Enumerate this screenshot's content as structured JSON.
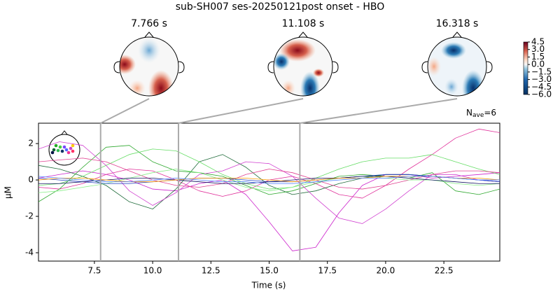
{
  "chart_data": {
    "type": "line",
    "title": "sub-SH007 ses-20250121post onset - HBO",
    "xlabel": "Time (s)",
    "ylabel": "µM",
    "annotation": {
      "main": "N",
      "sub": "ave",
      "rest": "=6"
    },
    "markers": [
      {
        "value": 7.766,
        "label": "7.766 s"
      },
      {
        "value": 11.108,
        "label": "11.108 s"
      },
      {
        "value": 16.318,
        "label": "16.318 s"
      }
    ],
    "clim": [
      -6,
      4.5
    ],
    "cticks": [
      4.5,
      {
        "value": 3,
        "label": "3.0"
      },
      1.5,
      {
        "value": 0,
        "label": "0.0"
      },
      {
        "value": -1.5,
        "label": "−1.5"
      },
      {
        "value": -3,
        "label": "−3.0"
      },
      {
        "value": -4.5,
        "label": "−4.5"
      },
      {
        "value": -6,
        "label": "−6.0"
      }
    ],
    "xlim": [
      5.1,
      24.9
    ],
    "ylim": [
      -4.46,
      3.12
    ],
    "xticks": [
      7.5,
      {
        "value": 10,
        "label": "10.0"
      },
      12.5,
      {
        "value": 15,
        "label": "15.0"
      },
      17.5,
      {
        "value": 20,
        "label": "20.0"
      },
      22.5
    ],
    "yticks": [
      -4,
      -2,
      0,
      2
    ],
    "x": [
      5.1,
      6,
      7,
      8,
      9,
      10,
      11,
      12,
      13,
      14,
      15,
      16,
      17,
      18,
      19,
      20,
      21,
      22,
      23,
      24,
      24.9
    ],
    "series": [
      {
        "color": "#cc22cc",
        "values": [
          0.1,
          0.3,
          0.5,
          0.3,
          0,
          -0.5,
          -0.6,
          -0.2,
          0,
          -0.8,
          -2.3,
          -3.9,
          -3.7,
          -1.8,
          -0.3,
          0.3,
          0.3,
          0.1,
          0.2,
          0.3,
          0.4
        ]
      },
      {
        "color": "#e0309a",
        "values": [
          -0.4,
          -0.5,
          -0.2,
          0.3,
          0.6,
          0.5,
          0,
          -0.6,
          -0.9,
          -0.6,
          0,
          0.2,
          -0.2,
          -0.8,
          -1.0,
          -0.3,
          0.6,
          1.4,
          2.3,
          2.8,
          2.6
        ]
      },
      {
        "color": "#1f6b3a",
        "values": [
          0.8,
          0.6,
          0.2,
          -0.3,
          -1.2,
          -1.6,
          -0.5,
          1.0,
          1.4,
          0.7,
          -0.3,
          -0.8,
          -0.6,
          -0.2,
          0.1,
          0.3,
          0.3,
          0.2,
          0.1,
          0,
          -0.1
        ]
      },
      {
        "color": "#2ea82e",
        "values": [
          -1.2,
          -0.5,
          0.7,
          1.8,
          1.9,
          1.0,
          0.5,
          0.4,
          0.2,
          -0.3,
          -0.8,
          -0.6,
          -0.2,
          0.2,
          0.3,
          0.2,
          0.1,
          0.4,
          -0.6,
          -0.8,
          -0.5
        ]
      },
      {
        "color": "#66dd66",
        "values": [
          -0.3,
          -0.2,
          0.2,
          0.8,
          1.4,
          1.7,
          1.6,
          1.0,
          0.3,
          -0.2,
          -0.5,
          -0.4,
          0.1,
          0.6,
          1.0,
          1.2,
          1.2,
          1.4,
          1.0,
          0.6,
          0.3
        ]
      },
      {
        "color": "#d040d0",
        "values": [
          1.7,
          2.1,
          1.9,
          0.8,
          -0.6,
          -1.4,
          -0.7,
          0.3,
          0.5,
          1.0,
          0.9,
          0.2,
          -1.0,
          -2.1,
          -2.4,
          -1.6,
          -0.6,
          0.3,
          0.3,
          0,
          -0.1
        ]
      },
      {
        "color": "#e04090",
        "values": [
          1.0,
          1.1,
          1.2,
          1.0,
          0.5,
          0,
          -0.3,
          -0.4,
          -0.2,
          0.3,
          0.6,
          0.4,
          0,
          -0.4,
          -0.5,
          -0.3,
          0,
          0.3,
          0.5,
          0.5,
          0.4
        ]
      },
      {
        "color": "#88ee88",
        "values": [
          -0.7,
          -0.6,
          -0.4,
          -0.2,
          0.1,
          0.4,
          0.6,
          0.4,
          0,
          -0.4,
          -0.6,
          -0.4,
          -0.1,
          0.1,
          0.2,
          0.1,
          0,
          0,
          -0.2,
          -0.3,
          -0.2
        ]
      },
      {
        "color": "#2040c0",
        "values": [
          0.1,
          0,
          -0.1,
          -0.2,
          -0.2,
          -0.1,
          0,
          0.1,
          0.1,
          0,
          -0.1,
          -0.1,
          0,
          0.1,
          0.2,
          0.3,
          0.3,
          0.2,
          0.1,
          0,
          -0.1
        ]
      },
      {
        "color": "#101060",
        "values": [
          -0.2,
          -0.2,
          -0.1,
          0,
          0.1,
          0.1,
          0,
          -0.1,
          -0.2,
          -0.2,
          -0.1,
          0,
          0.1,
          0.1,
          0.2,
          0.2,
          0.1,
          0,
          -0.1,
          -0.2,
          -0.2
        ]
      },
      {
        "color": "#ff9900",
        "values": [
          0,
          0.1,
          0.1,
          0,
          -0.1,
          -0.1,
          0,
          0.1,
          0.1,
          0.1,
          0,
          -0.1,
          0,
          0.1,
          0.1,
          0.2,
          0.2,
          0.2,
          0.1,
          0.1,
          0
        ]
      },
      {
        "color": "#5080ff",
        "values": [
          0.2,
          0.1,
          0,
          -0.1,
          -0.1,
          0,
          0.1,
          0,
          -0.1,
          -0.1,
          -0.2,
          -0.2,
          -0.1,
          0,
          0.1,
          0.1,
          0.2,
          0.2,
          0.1,
          0,
          0
        ]
      }
    ]
  }
}
